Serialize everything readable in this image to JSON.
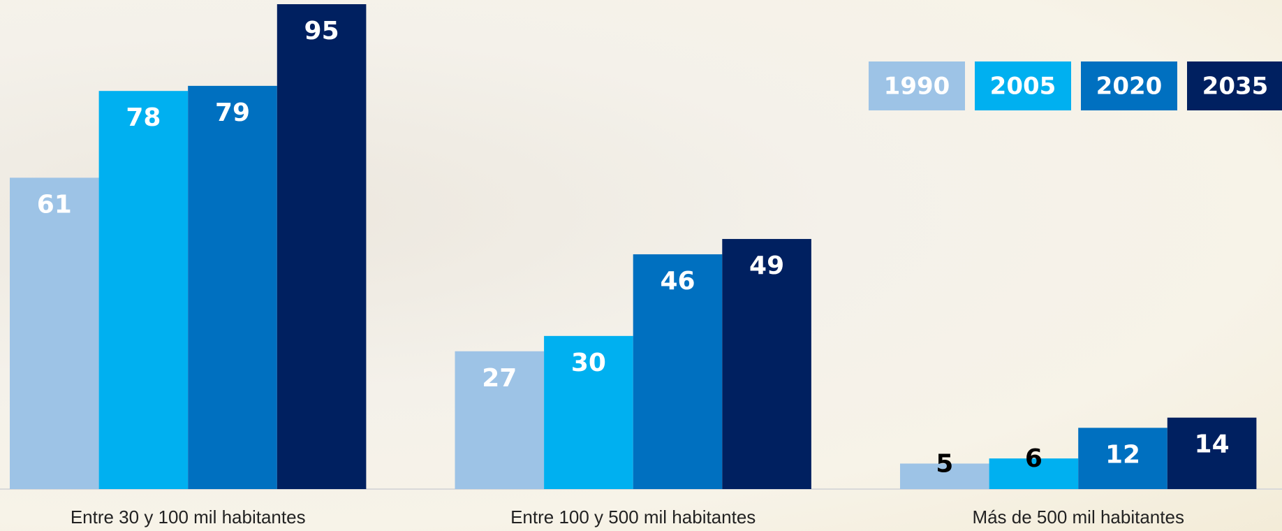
{
  "chart_data": {
    "type": "bar",
    "categories": [
      "Entre 30 y 100 mil habitantes",
      "Entre 100 y 500 mil habitantes",
      "Más de 500 mil habitantes"
    ],
    "series": [
      {
        "name": "1990",
        "color": "#9dc3e6",
        "values": [
          61,
          27,
          5
        ]
      },
      {
        "name": "2005",
        "color": "#00b0f0",
        "values": [
          78,
          30,
          6
        ]
      },
      {
        "name": "2020",
        "color": "#0070c0",
        "values": [
          79,
          46,
          12
        ]
      },
      {
        "name": "2035",
        "color": "#002060",
        "values": [
          95,
          49,
          14
        ]
      }
    ],
    "ylim": [
      0,
      95
    ],
    "legend": "top-right"
  }
}
